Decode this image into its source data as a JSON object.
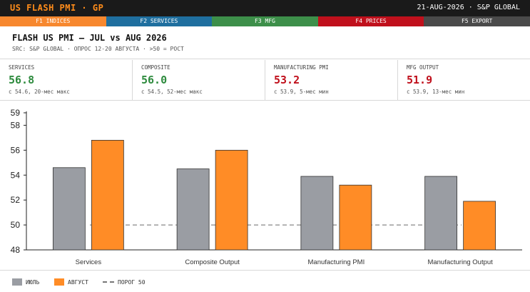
{
  "header_bar": {
    "app_title": "US FLASH PMI · GP",
    "date_source": "21-AUG-2026 · S&P GLOBAL"
  },
  "function_keys": [
    {
      "label": "F1 INDICES",
      "color": "#f7882f"
    },
    {
      "label": "F2 SERVICES",
      "color": "#1f6f9f"
    },
    {
      "label": "F3 MFG",
      "color": "#3d8f4a"
    },
    {
      "label": "F4 PRICES",
      "color": "#c0101c"
    },
    {
      "label": "F5 EXPORT",
      "color": "#4a4a4a"
    }
  ],
  "report": {
    "title": "FLASH US PMI — JUL vs AUG 2026",
    "subtitle": "SRC: S&P GLOBAL · ОПРОС 12-20 АВГУСТА · >50 = РОСТ"
  },
  "kpis": [
    {
      "label": "SERVICES",
      "value": "56.8",
      "note": "с 54.6, 20-мес макс",
      "color": "#2e8b3e"
    },
    {
      "label": "COMPOSITE",
      "value": "56.0",
      "note": "с 54.5, 52-мес макс",
      "color": "#2e8b3e"
    },
    {
      "label": "MANUFACTURING PMI",
      "value": "53.2",
      "note": "с 53.9, 5-мес мин",
      "color": "#c0101c"
    },
    {
      "label": "MFG OUTPUT",
      "value": "51.9",
      "note": "с 53.9, 13-мес мин",
      "color": "#c0101c"
    }
  ],
  "chart_data": {
    "type": "bar",
    "categories": [
      "Services",
      "Composite Output",
      "Manufacturing PMI",
      "Manufacturing Output"
    ],
    "series": [
      {
        "name": "ИЮЛЬ",
        "values": [
          54.6,
          54.5,
          53.9,
          53.9
        ],
        "color": "#9a9da3"
      },
      {
        "name": "АВГУСТ",
        "values": [
          56.8,
          56.0,
          53.2,
          51.9
        ],
        "color": "#ff8c26"
      }
    ],
    "threshold": {
      "value": 50,
      "name": "ПОРОГ 50"
    },
    "ylim": [
      48,
      59
    ],
    "yticks": [
      "48",
      "50",
      "52",
      "54",
      "56",
      "58",
      "59"
    ],
    "legend_position": "bottom-left"
  },
  "legend": {
    "july_label": "ИЮЛЬ",
    "august_label": "АВГУСТ",
    "threshold_label": "ПОРОГ 50"
  }
}
